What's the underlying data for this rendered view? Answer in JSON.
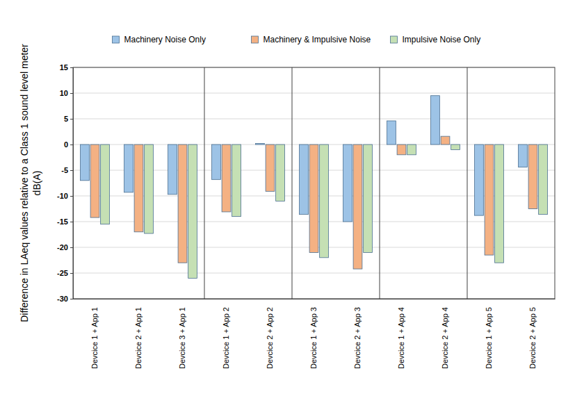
{
  "chart_data": {
    "type": "bar",
    "ylabel": [
      "Difference in LAeq values relative to a Class 1 sound level meter",
      "dB(A)"
    ],
    "categories": [
      "Devcice 1 + App 1",
      "Devcice 2 + App 1",
      "Devcice 3 + App 1",
      "Devcice 1 + App 2",
      "Devcice 2 + App 2",
      "Devcice 1 + App 3",
      "Devcice 2 + App 3",
      "Devcice 1 + App 4",
      "Devcice 2 + App 4",
      "Devcice 1 + App 5",
      "Devcice 2 + App 5"
    ],
    "series": [
      {
        "name": "Machinery Noise Only",
        "color": "#9dc3e6",
        "values": [
          -7,
          -9.3,
          -9.7,
          -6.8,
          0.2,
          -13.6,
          -15,
          4.6,
          9.5,
          -13.8,
          -4.4
        ]
      },
      {
        "name": "Machinery & Impulsive Noise",
        "color": "#f4b183",
        "values": [
          -14.2,
          -17,
          -23,
          -13.1,
          -9.1,
          -21,
          -24.2,
          -2,
          1.6,
          -21.5,
          -12.5
        ]
      },
      {
        "name": "Impulsive Noise Only",
        "color": "#c5e0b4",
        "values": [
          -15.5,
          -17.3,
          -26,
          -14,
          -11,
          -22,
          -21,
          -2,
          -1,
          -23,
          -13.6
        ]
      }
    ],
    "ylim": [
      -30,
      15
    ],
    "yticks": [
      -30,
      -25,
      -20,
      -15,
      -10,
      -5,
      0,
      5,
      10,
      15
    ],
    "grid": true,
    "legend": "top"
  }
}
